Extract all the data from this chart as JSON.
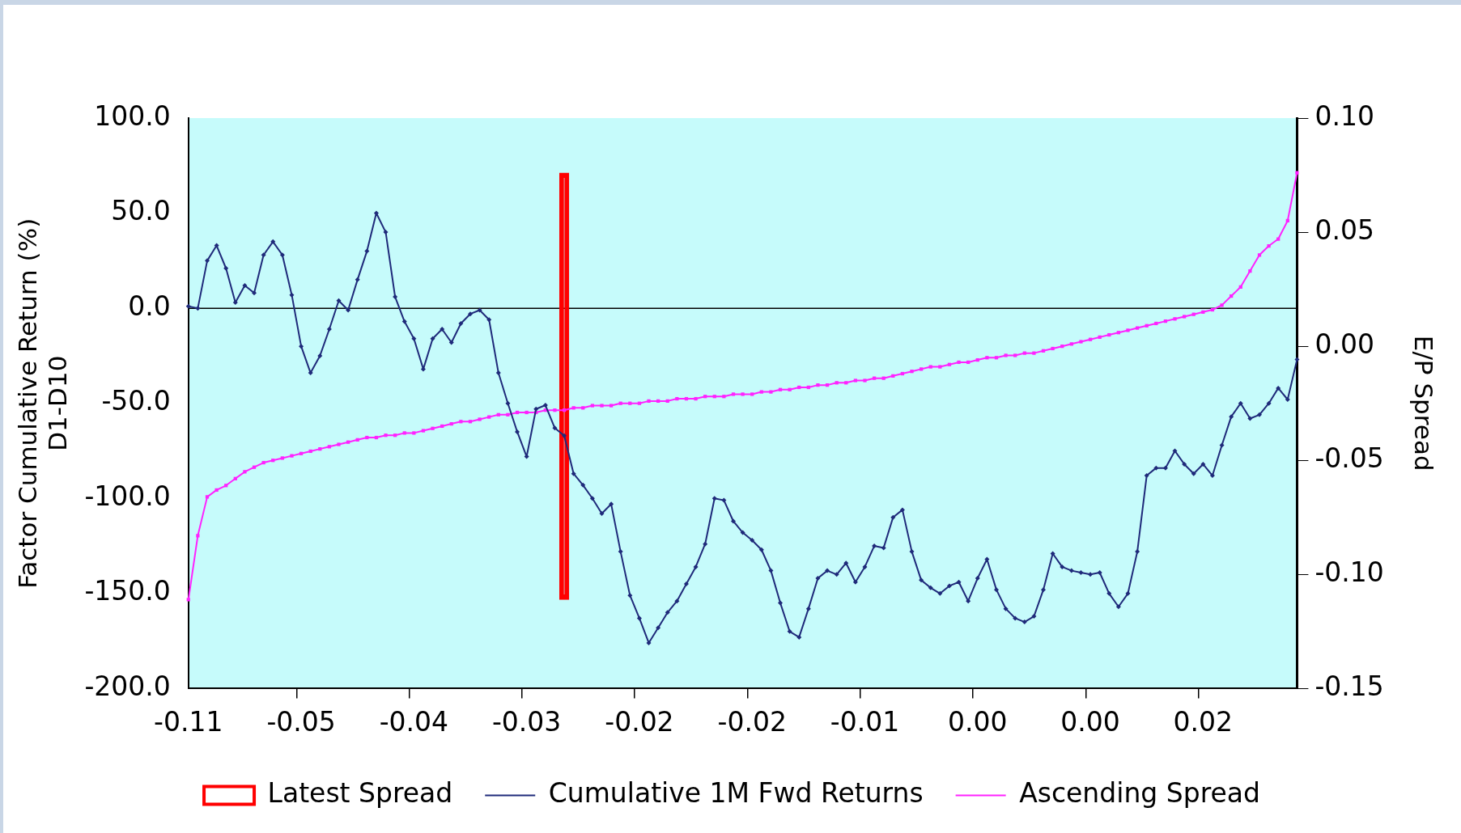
{
  "chart_data": {
    "type": "line",
    "ylabel": "Factor Cumulative Return (%)\nD1-D10",
    "y2label": "E/P Spread",
    "categories": [
      "-0.11",
      null,
      null,
      null,
      null,
      null,
      null,
      null,
      null,
      null,
      null,
      null,
      "-0.05",
      null,
      null,
      null,
      null,
      null,
      null,
      null,
      null,
      null,
      null,
      null,
      "-0.04",
      null,
      null,
      null,
      null,
      null,
      null,
      null,
      null,
      null,
      null,
      null,
      "-0.03",
      null,
      null,
      null,
      null,
      null,
      null,
      null,
      null,
      null,
      null,
      null,
      "-0.02",
      null,
      null,
      null,
      null,
      null,
      null,
      null,
      null,
      null,
      null,
      null,
      "-0.02",
      null,
      null,
      null,
      null,
      null,
      null,
      null,
      null,
      null,
      null,
      null,
      "-0.01",
      null,
      null,
      null,
      null,
      null,
      null,
      null,
      null,
      null,
      null,
      null,
      "0.00",
      null,
      null,
      null,
      null,
      null,
      null,
      null,
      null,
      null,
      null,
      null,
      "0.00",
      null,
      null,
      null,
      null,
      null,
      null,
      null,
      null,
      null,
      null,
      null,
      "0.02",
      null,
      null,
      null,
      null,
      null,
      null,
      null,
      null,
      null,
      null
    ],
    "series": [
      {
        "name": "Latest Spread",
        "type": "bar",
        "axis": "y2",
        "color": "#ff0000",
        "values": [
          null,
          null,
          null,
          null,
          null,
          null,
          null,
          null,
          null,
          null,
          null,
          null,
          null,
          null,
          null,
          null,
          null,
          null,
          null,
          null,
          null,
          null,
          null,
          null,
          null,
          null,
          null,
          null,
          null,
          null,
          null,
          null,
          null,
          null,
          null,
          null,
          null,
          null,
          null,
          null,
          0.187,
          null,
          null,
          null,
          null,
          null,
          null,
          null,
          null,
          null,
          null,
          null,
          null,
          null,
          null,
          null,
          null,
          null,
          null,
          null,
          null,
          null,
          null,
          null,
          null,
          null,
          null,
          null,
          null,
          null,
          null,
          null,
          null,
          null,
          null,
          null,
          null,
          null,
          null,
          null,
          null,
          null,
          null,
          null,
          null,
          null,
          null,
          null,
          null,
          null,
          null,
          null,
          null,
          null,
          null,
          null,
          null,
          null,
          null,
          null,
          null,
          null,
          null,
          null,
          null,
          null,
          null,
          null,
          null,
          null,
          null,
          null,
          null,
          null,
          null,
          null,
          null,
          null,
          null
        ],
        "base": [
          null,
          null,
          null,
          null,
          null,
          null,
          null,
          null,
          null,
          null,
          null,
          null,
          null,
          null,
          null,
          null,
          null,
          null,
          null,
          null,
          null,
          null,
          null,
          null,
          null,
          null,
          null,
          null,
          null,
          null,
          null,
          null,
          null,
          null,
          null,
          null,
          null,
          null,
          null,
          null,
          -0.111,
          null,
          null,
          null,
          null,
          null,
          null,
          null,
          null,
          null,
          null,
          null,
          null,
          null,
          null,
          null,
          null,
          null,
          null,
          null,
          null,
          null,
          null,
          null,
          null,
          null,
          null,
          null,
          null,
          null,
          null,
          null,
          null,
          null,
          null,
          null,
          null,
          null,
          null,
          null,
          null,
          null,
          null,
          null,
          null,
          null,
          null,
          null,
          null,
          null,
          null,
          null,
          null,
          null,
          null,
          null,
          null,
          null,
          null,
          null,
          null,
          null,
          null,
          null,
          null,
          null,
          null,
          null,
          null,
          null,
          null,
          null,
          null,
          null,
          null,
          null,
          null,
          null,
          null
        ]
      },
      {
        "name": "Cumulative 1M Fwd Returns",
        "color": "#1f2a7a",
        "marker": "diamond",
        "values": [
          1,
          0,
          25,
          33,
          21,
          3,
          12,
          8,
          28,
          35,
          28,
          7,
          -20,
          -34,
          -25,
          -11,
          4,
          -1,
          15,
          30,
          50,
          40,
          6,
          -7,
          -16,
          -32,
          -16,
          -11,
          -18,
          -8,
          -3,
          -1,
          -6,
          -34,
          -50,
          -65,
          -78,
          -53,
          -51,
          -63,
          -67,
          -87,
          -93,
          -100,
          -108,
          -103,
          -128,
          -151,
          -163,
          -176,
          -168,
          -160,
          -154,
          -145,
          -136,
          -124,
          -100,
          -101,
          -112,
          -118,
          -122,
          -127,
          -138,
          -155,
          -170,
          -173,
          -158,
          -142,
          -138,
          -140,
          -134,
          -144,
          -136,
          -125,
          -126,
          -110,
          -106,
          -128,
          -143,
          -147,
          -150,
          -146,
          -144,
          -154,
          -142,
          -132,
          -148,
          -158,
          -163,
          -165,
          -162,
          -148,
          -129,
          -136,
          -138,
          -139,
          -140,
          -139,
          -150,
          -157,
          -150,
          -128,
          -88,
          -84,
          -84,
          -75,
          -82,
          -87,
          -82,
          -88,
          -72,
          -57,
          -50,
          -58,
          -56,
          -50,
          -42,
          -48,
          -27
        ]
      },
      {
        "name": "Ascending Spread",
        "axis": "y2",
        "color": "#ff22ff",
        "marker": "square",
        "values": [
          -0.111,
          -0.083,
          -0.066,
          -0.063,
          -0.061,
          -0.058,
          -0.055,
          -0.053,
          -0.051,
          -0.05,
          -0.049,
          -0.048,
          -0.047,
          -0.046,
          -0.045,
          -0.044,
          -0.043,
          -0.042,
          -0.041,
          -0.04,
          -0.04,
          -0.039,
          -0.039,
          -0.038,
          -0.038,
          -0.037,
          -0.036,
          -0.035,
          -0.034,
          -0.033,
          -0.033,
          -0.032,
          -0.031,
          -0.03,
          -0.03,
          -0.029,
          -0.029,
          -0.029,
          -0.028,
          -0.028,
          -0.028,
          -0.027,
          -0.027,
          -0.026,
          -0.026,
          -0.026,
          -0.025,
          -0.025,
          -0.025,
          -0.024,
          -0.024,
          -0.024,
          -0.023,
          -0.023,
          -0.023,
          -0.022,
          -0.022,
          -0.022,
          -0.021,
          -0.021,
          -0.021,
          -0.02,
          -0.02,
          -0.019,
          -0.019,
          -0.018,
          -0.018,
          -0.017,
          -0.017,
          -0.016,
          -0.016,
          -0.015,
          -0.015,
          -0.014,
          -0.014,
          -0.013,
          -0.012,
          -0.011,
          -0.01,
          -0.009,
          -0.009,
          -0.008,
          -0.007,
          -0.007,
          -0.006,
          -0.005,
          -0.005,
          -0.004,
          -0.004,
          -0.003,
          -0.003,
          -0.002,
          -0.001,
          0.0,
          0.001,
          0.002,
          0.003,
          0.004,
          0.005,
          0.006,
          0.007,
          0.008,
          0.009,
          0.01,
          0.011,
          0.012,
          0.013,
          0.014,
          0.015,
          0.016,
          0.018,
          0.022,
          0.026,
          0.033,
          0.04,
          0.044,
          0.047,
          0.055,
          0.076
        ]
      }
    ],
    "ylim": [
      -200,
      100
    ],
    "yticks": [
      {
        "value": -200,
        "label": "-200.0"
      },
      {
        "value": -150,
        "label": "-150.0"
      },
      {
        "value": -100,
        "label": "-100.0"
      },
      {
        "value": -50,
        "label": "-50.0"
      },
      {
        "value": 0,
        "label": "0.0"
      },
      {
        "value": 50,
        "label": "50.0"
      },
      {
        "value": 100,
        "label": "100.0"
      }
    ],
    "y2lim": [
      -0.15,
      0.1
    ],
    "y2ticks": [
      {
        "value": -0.15,
        "label": "-0.15"
      },
      {
        "value": -0.1,
        "label": "-0.10"
      },
      {
        "value": -0.05,
        "label": "-0.05"
      },
      {
        "value": 0,
        "label": "0.00"
      },
      {
        "value": 0.05,
        "label": "0.05"
      },
      {
        "value": 0.1,
        "label": "0.10"
      }
    ],
    "ref_lines": [
      {
        "axis": "y",
        "value": 0,
        "color": "#000000"
      }
    ],
    "legend": "bottom"
  }
}
